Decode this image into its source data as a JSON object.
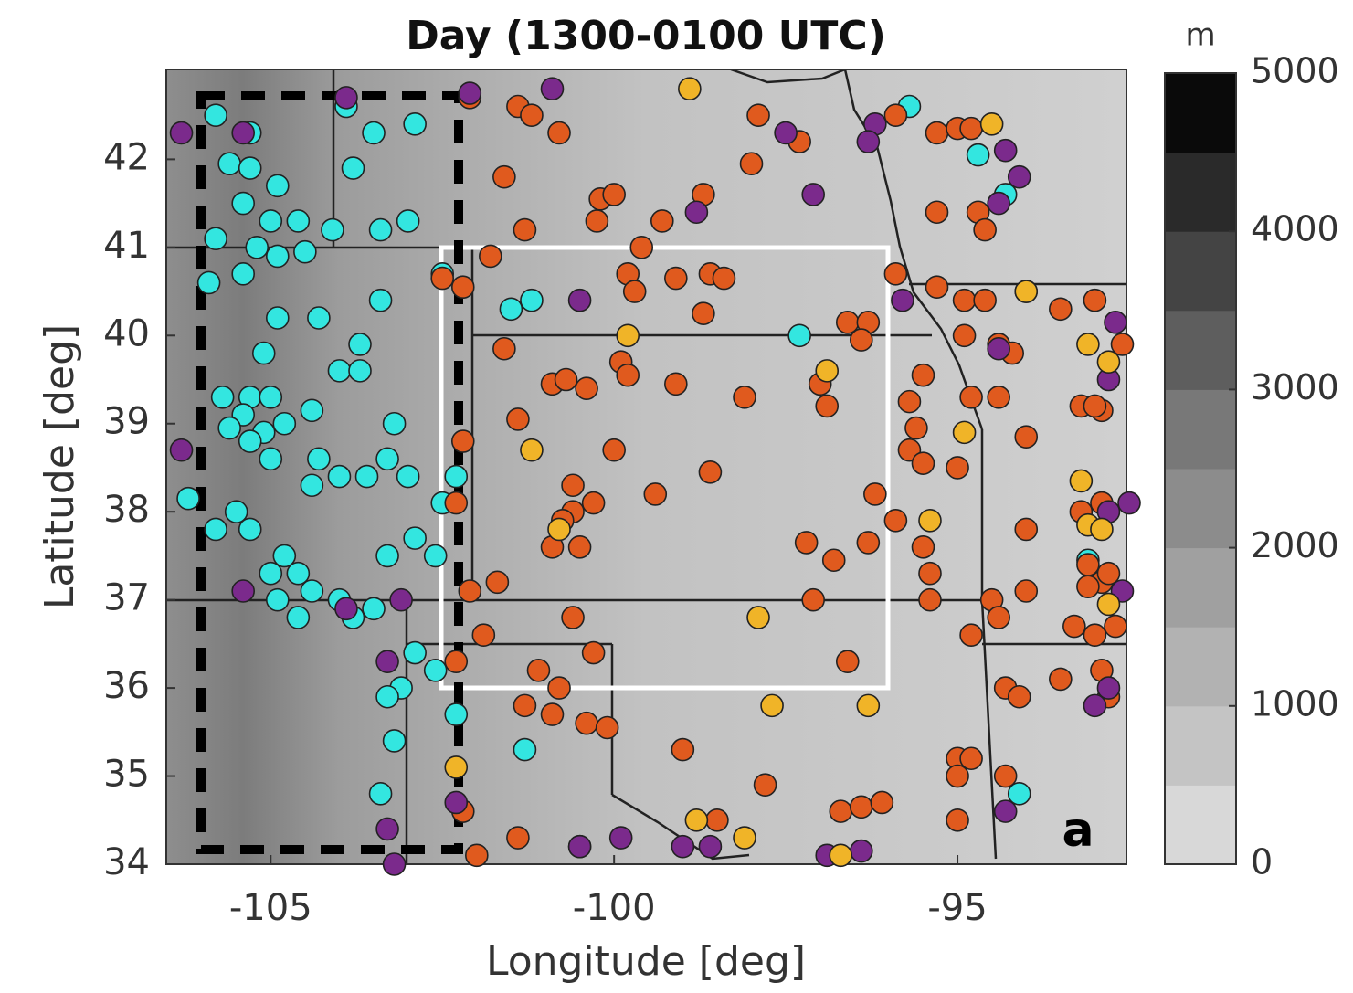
{
  "chart_data": {
    "type": "scatter",
    "title": "Day (1300-0100 UTC)",
    "x_label": "Longitude [deg]",
    "y_label": "Latitude [deg]",
    "annotation": "a",
    "xlim": [
      -106.52,
      -92.54
    ],
    "ylim": [
      34,
      43.02
    ],
    "xticks": [
      -105,
      -100,
      -95
    ],
    "yticks": [
      34,
      35,
      36,
      37,
      38,
      39,
      40,
      41,
      42
    ],
    "colorbar": {
      "label": "m",
      "lim": [
        0,
        5000
      ],
      "ticks": [
        0,
        1000,
        2000,
        3000,
        4000,
        5000
      ],
      "colors": [
        "#d8d8d8",
        "#c4c4c4",
        "#b2b2b2",
        "#a0a0a0",
        "#8c8c8c",
        "#787878",
        "#5e5e5e",
        "#444444",
        "#2a2a2a",
        "#0a0a0a"
      ]
    },
    "series": [
      {
        "color": "#33e6e0",
        "points": [
          [
            -105.8,
            42.5
          ],
          [
            -105.3,
            42.3
          ],
          [
            -105.6,
            41.95
          ],
          [
            -105.3,
            41.9
          ],
          [
            -104.9,
            41.7
          ],
          [
            -105.4,
            41.5
          ],
          [
            -105.0,
            41.3
          ],
          [
            -104.6,
            41.3
          ],
          [
            -105.8,
            41.1
          ],
          [
            -105.2,
            41.0
          ],
          [
            -104.9,
            40.9
          ],
          [
            -104.5,
            40.95
          ],
          [
            -105.4,
            40.7
          ],
          [
            -105.9,
            40.6
          ],
          [
            -104.3,
            40.2
          ],
          [
            -104.9,
            40.2
          ],
          [
            -105.1,
            39.8
          ],
          [
            -103.7,
            39.9
          ],
          [
            -103.4,
            40.4
          ],
          [
            -103.9,
            42.6
          ],
          [
            -103.5,
            42.3
          ],
          [
            -102.9,
            42.4
          ],
          [
            -103.8,
            41.9
          ],
          [
            -103.4,
            41.2
          ],
          [
            -103.0,
            41.3
          ],
          [
            -104.1,
            41.2
          ],
          [
            -105.7,
            39.3
          ],
          [
            -105.3,
            39.3
          ],
          [
            -105.0,
            39.3
          ],
          [
            -105.4,
            39.1
          ],
          [
            -105.6,
            38.95
          ],
          [
            -105.1,
            38.9
          ],
          [
            -104.8,
            39.0
          ],
          [
            -105.3,
            38.8
          ],
          [
            -105.0,
            38.6
          ],
          [
            -104.3,
            38.6
          ],
          [
            -104.4,
            39.15
          ],
          [
            -104.0,
            39.6
          ],
          [
            -103.7,
            39.6
          ],
          [
            -103.2,
            39.0
          ],
          [
            -103.3,
            38.6
          ],
          [
            -103.0,
            38.4
          ],
          [
            -103.6,
            38.4
          ],
          [
            -104.0,
            38.4
          ],
          [
            -104.4,
            38.3
          ],
          [
            -106.2,
            38.15
          ],
          [
            -105.8,
            37.8
          ],
          [
            -105.5,
            38.0
          ],
          [
            -105.3,
            37.8
          ],
          [
            -104.8,
            37.5
          ],
          [
            -104.6,
            37.3
          ],
          [
            -105.0,
            37.3
          ],
          [
            -104.9,
            37.0
          ],
          [
            -104.4,
            37.1
          ],
          [
            -104.6,
            36.8
          ],
          [
            -104.0,
            37.0
          ],
          [
            -103.8,
            36.8
          ],
          [
            -103.3,
            37.5
          ],
          [
            -102.6,
            37.5
          ],
          [
            -102.9,
            37.7
          ],
          [
            -102.3,
            38.4
          ],
          [
            -102.5,
            38.1
          ],
          [
            -103.5,
            36.9
          ],
          [
            -102.9,
            36.4
          ],
          [
            -103.1,
            36.0
          ],
          [
            -103.3,
            35.9
          ],
          [
            -102.6,
            36.2
          ],
          [
            -102.3,
            35.7
          ],
          [
            -101.3,
            35.3
          ],
          [
            -103.2,
            35.4
          ],
          [
            -103.4,
            34.8
          ],
          [
            -101.2,
            40.4
          ],
          [
            -101.5,
            40.3
          ],
          [
            -97.3,
            40.0
          ],
          [
            -95.7,
            42.6
          ],
          [
            -94.7,
            42.05
          ],
          [
            -94.3,
            41.6
          ],
          [
            -94.1,
            34.8
          ],
          [
            -93.1,
            37.45
          ],
          [
            -102.5,
            40.7
          ]
        ]
      },
      {
        "color": "#e05a1e",
        "points": [
          [
            -102.1,
            42.7
          ],
          [
            -101.4,
            42.6
          ],
          [
            -101.2,
            42.5
          ],
          [
            -100.8,
            42.3
          ],
          [
            -101.6,
            41.8
          ],
          [
            -100.2,
            41.55
          ],
          [
            -100.0,
            41.6
          ],
          [
            -100.25,
            41.3
          ],
          [
            -99.3,
            41.3
          ],
          [
            -98.7,
            41.6
          ],
          [
            -98.0,
            41.95
          ],
          [
            -97.9,
            42.5
          ],
          [
            -97.3,
            42.2
          ],
          [
            -101.3,
            41.2
          ],
          [
            -101.8,
            40.9
          ],
          [
            -99.6,
            41.0
          ],
          [
            -99.8,
            40.7
          ],
          [
            -99.7,
            40.5
          ],
          [
            -99.1,
            40.65
          ],
          [
            -98.6,
            40.7
          ],
          [
            -98.4,
            40.65
          ],
          [
            -98.7,
            40.25
          ],
          [
            -102.5,
            40.65
          ],
          [
            -102.2,
            40.55
          ],
          [
            -101.6,
            39.85
          ],
          [
            -100.9,
            39.45
          ],
          [
            -100.7,
            39.5
          ],
          [
            -100.4,
            39.4
          ],
          [
            -99.9,
            39.7
          ],
          [
            -99.8,
            39.55
          ],
          [
            -99.1,
            39.45
          ],
          [
            -98.1,
            39.3
          ],
          [
            -97.0,
            39.45
          ],
          [
            -96.6,
            40.15
          ],
          [
            -96.3,
            40.15
          ],
          [
            -96.4,
            39.95
          ],
          [
            -96.9,
            39.2
          ],
          [
            -101.4,
            39.05
          ],
          [
            -100.0,
            38.7
          ],
          [
            -98.6,
            38.45
          ],
          [
            -99.4,
            38.2
          ],
          [
            -100.6,
            38.3
          ],
          [
            -100.3,
            38.1
          ],
          [
            -100.6,
            38.0
          ],
          [
            -100.75,
            37.9
          ],
          [
            -100.9,
            37.6
          ],
          [
            -100.5,
            37.6
          ],
          [
            -97.2,
            37.65
          ],
          [
            -96.8,
            37.45
          ],
          [
            -96.3,
            37.65
          ],
          [
            -96.2,
            38.2
          ],
          [
            -95.9,
            37.9
          ],
          [
            -102.1,
            37.1
          ],
          [
            -101.7,
            37.2
          ],
          [
            -101.9,
            36.6
          ],
          [
            -102.3,
            36.3
          ],
          [
            -101.1,
            36.2
          ],
          [
            -100.8,
            36.0
          ],
          [
            -100.6,
            36.8
          ],
          [
            -100.3,
            36.4
          ],
          [
            -97.1,
            37.0
          ],
          [
            -96.6,
            36.3
          ],
          [
            -101.3,
            35.8
          ],
          [
            -100.9,
            35.7
          ],
          [
            -100.4,
            35.6
          ],
          [
            -100.1,
            35.55
          ],
          [
            -99.0,
            35.3
          ],
          [
            -97.8,
            34.9
          ],
          [
            -98.5,
            34.5
          ],
          [
            -101.4,
            34.3
          ],
          [
            -100.5,
            34.2
          ],
          [
            -102.0,
            34.1
          ],
          [
            -102.2,
            34.6
          ],
          [
            -102.2,
            38.8
          ],
          [
            -102.3,
            38.1
          ],
          [
            -96.7,
            34.6
          ],
          [
            -96.4,
            34.65
          ],
          [
            -96.1,
            34.7
          ],
          [
            -95.0,
            34.5
          ],
          [
            -95.0,
            35.2
          ],
          [
            -94.8,
            35.2
          ],
          [
            -95.0,
            35.0
          ],
          [
            -94.3,
            35.0
          ],
          [
            -95.9,
            42.5
          ],
          [
            -95.3,
            42.3
          ],
          [
            -95.0,
            42.35
          ],
          [
            -94.8,
            42.35
          ],
          [
            -95.3,
            41.4
          ],
          [
            -94.7,
            41.4
          ],
          [
            -94.6,
            41.2
          ],
          [
            -95.9,
            40.7
          ],
          [
            -95.3,
            40.55
          ],
          [
            -94.9,
            40.4
          ],
          [
            -94.6,
            40.4
          ],
          [
            -94.0,
            40.5
          ],
          [
            -93.5,
            40.3
          ],
          [
            -93.0,
            40.4
          ],
          [
            -94.4,
            39.9
          ],
          [
            -94.2,
            39.8
          ],
          [
            -92.6,
            39.9
          ],
          [
            -94.9,
            40.0
          ],
          [
            -95.5,
            39.55
          ],
          [
            -94.8,
            39.3
          ],
          [
            -94.4,
            39.3
          ],
          [
            -94.0,
            38.85
          ],
          [
            -93.2,
            39.2
          ],
          [
            -92.9,
            39.15
          ],
          [
            -95.7,
            39.25
          ],
          [
            -95.6,
            38.95
          ],
          [
            -95.7,
            38.7
          ],
          [
            -95.5,
            38.55
          ],
          [
            -95.0,
            38.5
          ],
          [
            -95.5,
            37.6
          ],
          [
            -95.4,
            37.3
          ],
          [
            -95.4,
            37.0
          ],
          [
            -94.5,
            37.0
          ],
          [
            -94.0,
            37.1
          ],
          [
            -94.4,
            36.8
          ],
          [
            -94.8,
            36.6
          ],
          [
            -93.3,
            36.7
          ],
          [
            -93.0,
            36.6
          ],
          [
            -92.9,
            36.2
          ],
          [
            -93.5,
            36.1
          ],
          [
            -92.7,
            36.7
          ],
          [
            -93.1,
            37.4
          ],
          [
            -92.9,
            37.2
          ],
          [
            -93.1,
            37.15
          ],
          [
            -92.8,
            37.3
          ],
          [
            -93.2,
            38.0
          ],
          [
            -92.9,
            38.1
          ],
          [
            -94.3,
            36.0
          ],
          [
            -94.1,
            35.9
          ],
          [
            -92.8,
            35.9
          ],
          [
            -94.0,
            37.8
          ],
          [
            -93.0,
            39.2
          ]
        ]
      },
      {
        "color": "#7b2a8c",
        "points": [
          [
            -106.3,
            42.3
          ],
          [
            -105.4,
            42.3
          ],
          [
            -103.9,
            42.7
          ],
          [
            -102.1,
            42.75
          ],
          [
            -100.9,
            42.8
          ],
          [
            -97.5,
            42.3
          ],
          [
            -98.8,
            41.4
          ],
          [
            -97.1,
            41.6
          ],
          [
            -96.2,
            42.4
          ],
          [
            -96.3,
            42.2
          ],
          [
            -94.3,
            42.1
          ],
          [
            -94.1,
            41.8
          ],
          [
            -94.4,
            41.5
          ],
          [
            -95.8,
            40.4
          ],
          [
            -100.5,
            40.4
          ],
          [
            -94.4,
            39.85
          ],
          [
            -92.7,
            40.15
          ],
          [
            -92.8,
            39.5
          ],
          [
            -106.3,
            38.7
          ],
          [
            -105.4,
            37.1
          ],
          [
            -103.9,
            36.9
          ],
          [
            -103.1,
            37.0
          ],
          [
            -103.3,
            36.3
          ],
          [
            -102.3,
            34.7
          ],
          [
            -103.3,
            34.4
          ],
          [
            -103.2,
            34.0
          ],
          [
            -100.5,
            34.2
          ],
          [
            -99.9,
            34.3
          ],
          [
            -99.0,
            34.2
          ],
          [
            -98.6,
            34.2
          ],
          [
            -96.9,
            34.1
          ],
          [
            -96.4,
            34.15
          ],
          [
            -92.5,
            38.1
          ],
          [
            -92.6,
            37.1
          ],
          [
            -92.8,
            36.0
          ],
          [
            -93.0,
            35.8
          ],
          [
            -94.3,
            34.6
          ],
          [
            -92.8,
            38.0
          ]
        ]
      },
      {
        "color": "#f0b428",
        "points": [
          [
            -98.9,
            42.8
          ],
          [
            -94.5,
            42.4
          ],
          [
            -94.0,
            40.5
          ],
          [
            -93.1,
            39.9
          ],
          [
            -92.8,
            39.7
          ],
          [
            -99.8,
            40.0
          ],
          [
            -96.9,
            39.6
          ],
          [
            -101.2,
            38.7
          ],
          [
            -100.8,
            37.8
          ],
          [
            -97.9,
            36.8
          ],
          [
            -97.7,
            35.8
          ],
          [
            -96.3,
            35.8
          ],
          [
            -94.9,
            38.9
          ],
          [
            -95.4,
            37.9
          ],
          [
            -93.2,
            38.35
          ],
          [
            -93.1,
            37.85
          ],
          [
            -92.9,
            37.8
          ],
          [
            -92.8,
            36.95
          ],
          [
            -98.8,
            34.5
          ],
          [
            -98.1,
            34.3
          ],
          [
            -96.7,
            34.1
          ],
          [
            -102.3,
            35.1
          ]
        ]
      }
    ]
  }
}
